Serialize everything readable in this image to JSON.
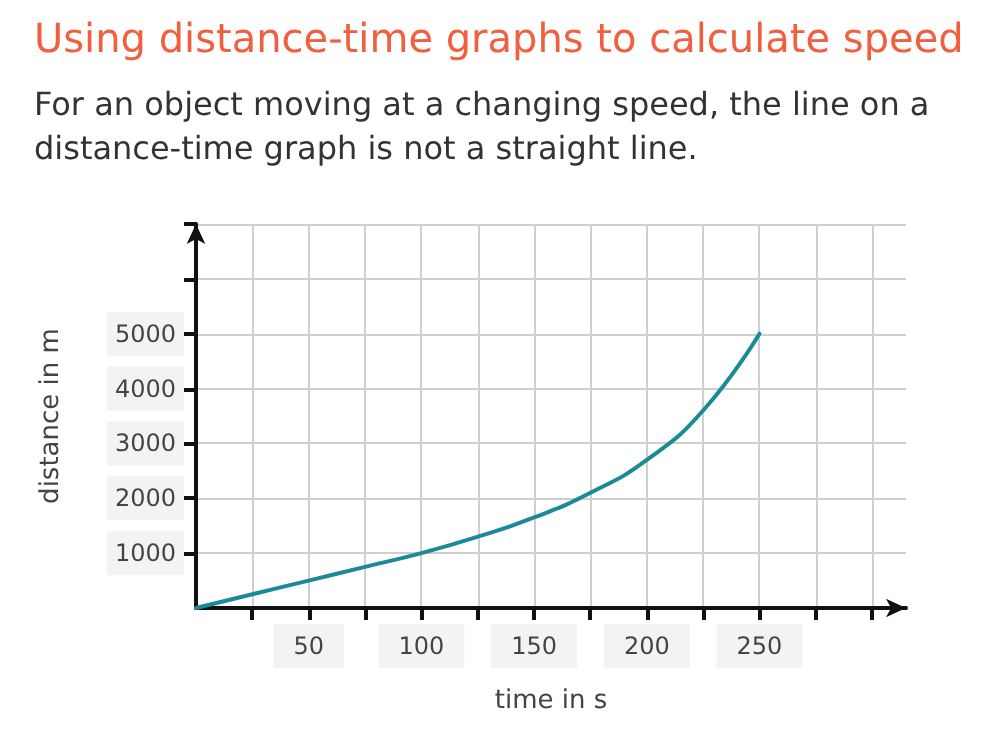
{
  "chart_data": {
    "type": "line",
    "title": "Using distance-time graphs to calculate speed",
    "subtitle": "For an object moving at a changing speed, the line on a\ndistance-time graph is not a straight line.",
    "xlabel": "time in s",
    "ylabel": "distance in m",
    "x": [
      0,
      25,
      50,
      75,
      100,
      125,
      150,
      175,
      200,
      225,
      250
    ],
    "series": [
      {
        "color": "#1a8a96",
        "values": [
          0,
          250,
          500,
          750,
          1000,
          1300,
          1650,
          2100,
          2700,
          3600,
          5000
        ]
      }
    ],
    "xlim": [
      0,
      315
    ],
    "xticks": [
      {
        "value": 25,
        "label": null
      },
      50,
      {
        "value": 75,
        "label": null
      },
      100,
      {
        "value": 125,
        "label": null
      },
      150,
      {
        "value": 175,
        "label": null
      },
      200,
      {
        "value": 225,
        "label": null
      },
      250,
      {
        "value": 275,
        "label": null
      },
      {
        "value": 300,
        "label": null
      }
    ],
    "ylim": [
      0,
      7000
    ],
    "yticks": [
      1000,
      2000,
      3000,
      4000,
      5000,
      {
        "value": 6000,
        "label": null
      },
      {
        "value": 7000,
        "label": null
      }
    ],
    "grid": true,
    "marker": "none",
    "line_style": "solid"
  }
}
